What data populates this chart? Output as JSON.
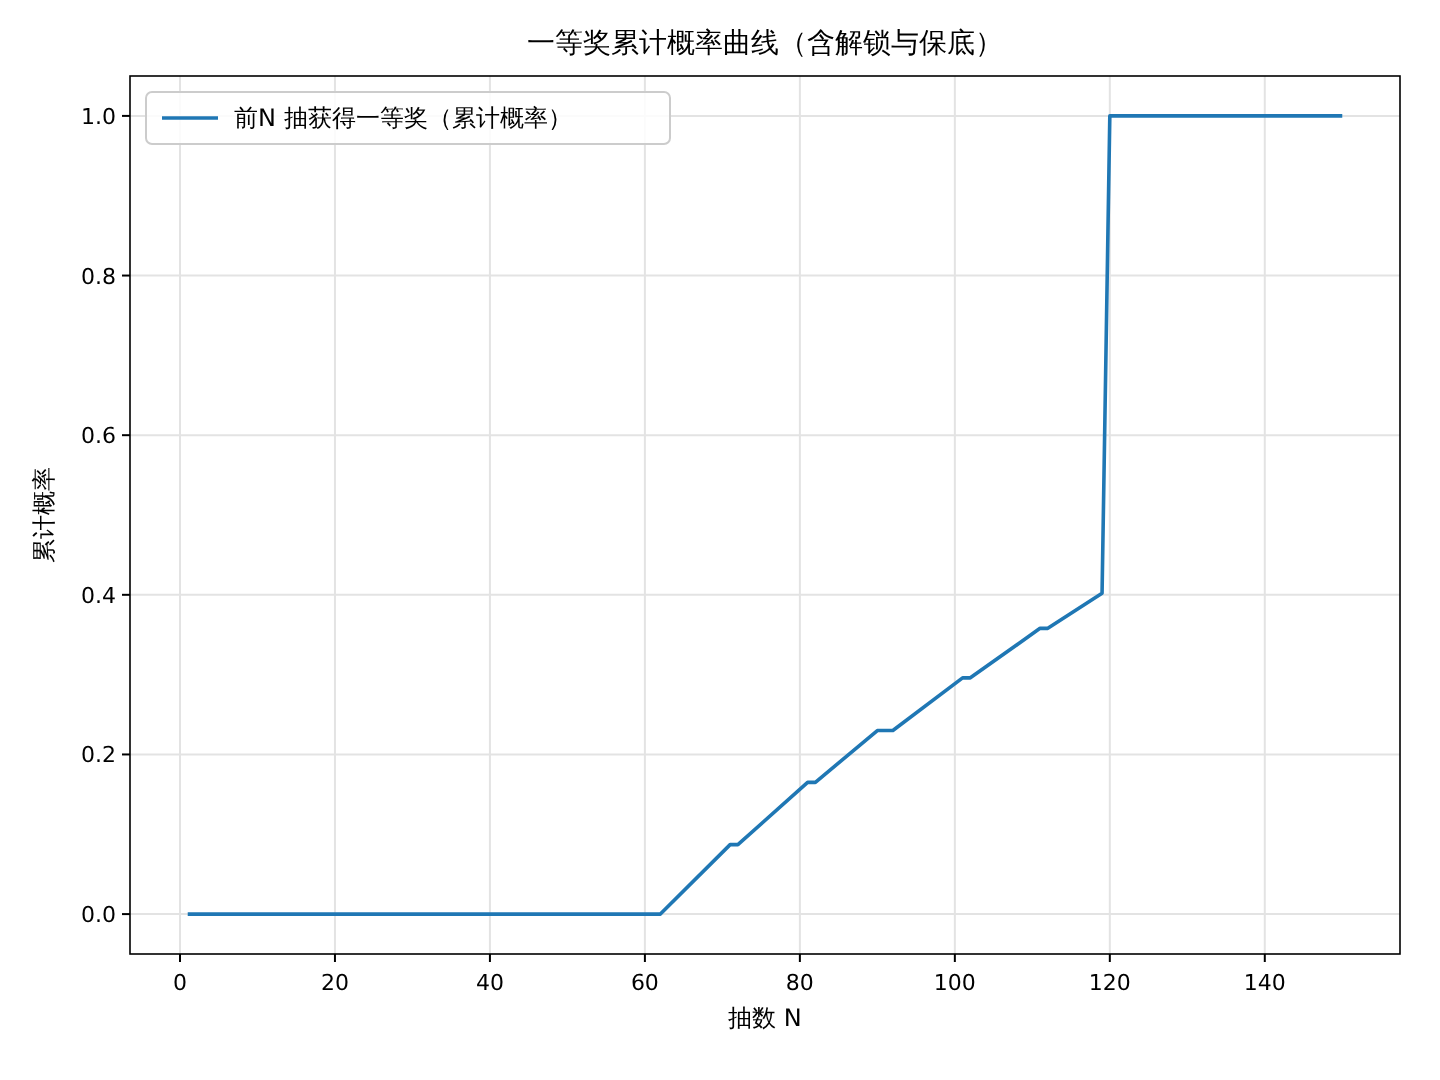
{
  "chart_data": {
    "type": "line",
    "title": "一等奖累计概率曲线（含解锁与保底）",
    "xlabel": "抽数 N",
    "ylabel": "累计概率",
    "x": [
      1,
      62,
      71,
      72,
      81,
      82,
      90,
      92,
      101,
      102,
      111,
      112,
      119,
      120,
      150
    ],
    "series": [
      {
        "name": "前N 抽获得一等奖（累计概率）",
        "color": "#1f77b4",
        "values": [
          0,
          0,
          0.087,
          0.087,
          0.165,
          0.165,
          0.23,
          0.23,
          0.296,
          0.296,
          0.358,
          0.358,
          0.402,
          1,
          1
        ]
      }
    ],
    "xlim": [
      -6.45,
      157.45
    ],
    "ylim": [
      -0.05,
      1.05
    ],
    "xticks": [
      0,
      20,
      40,
      60,
      80,
      100,
      120,
      140
    ],
    "yticks": [
      {
        "value": 0,
        "label": "0.0"
      },
      {
        "value": 0.2,
        "label": "0.2"
      },
      {
        "value": 0.4,
        "label": "0.4"
      },
      {
        "value": 0.6,
        "label": "0.6"
      },
      {
        "value": 0.8,
        "label": "0.8"
      },
      {
        "value": 1,
        "label": "1.0"
      }
    ],
    "grid": true,
    "legend": "top left",
    "marker": "none",
    "line_style": "solid"
  }
}
